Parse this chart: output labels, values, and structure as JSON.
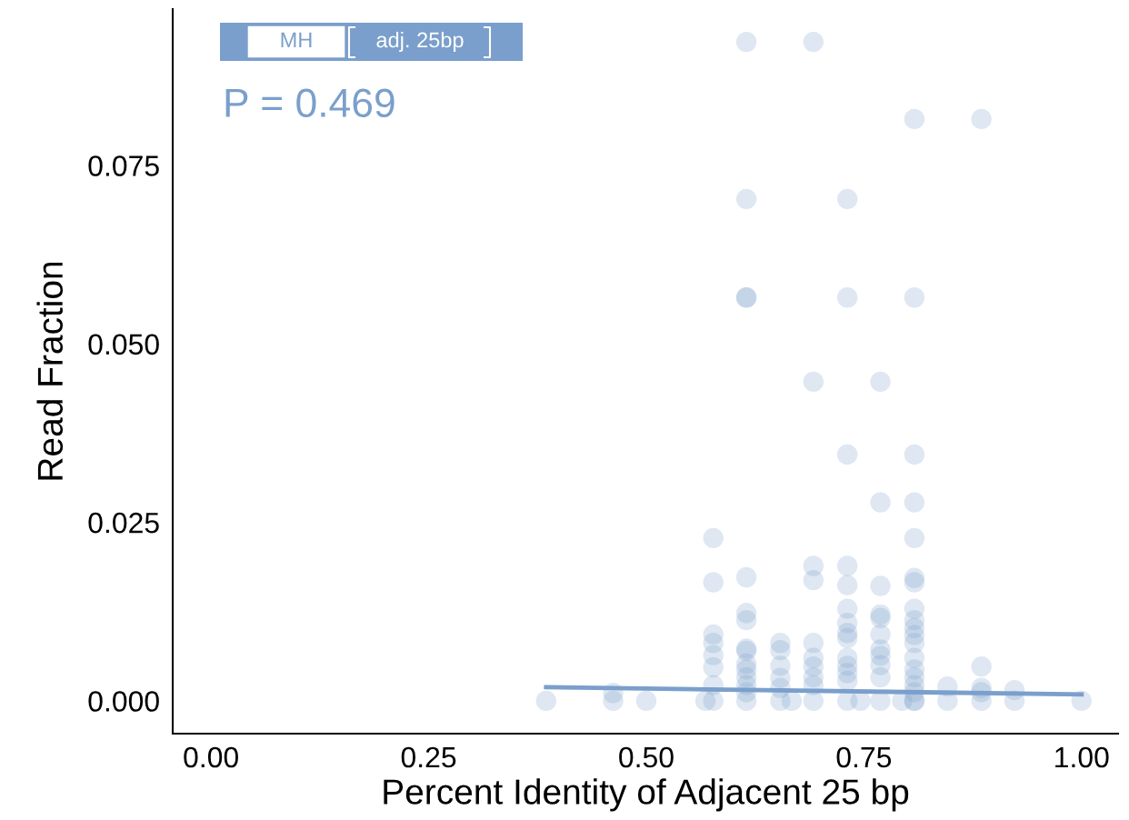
{
  "chart_data": {
    "type": "scatter",
    "xlabel": "Percent Identity of Adjacent 25 bp",
    "ylabel": "Read Fraction",
    "xlim": [
      -0.044,
      1.042
    ],
    "ylim": [
      -0.0046,
      0.0969
    ],
    "xticks": [
      {
        "value": 0,
        "label": "0.00"
      },
      {
        "value": 0.25,
        "label": "0.25"
      },
      {
        "value": 0.5,
        "label": "0.50"
      },
      {
        "value": 0.75,
        "label": "0.75"
      },
      {
        "value": 1,
        "label": "1.00"
      }
    ],
    "yticks": [
      {
        "value": 0,
        "label": "0.000"
      },
      {
        "value": 0.025,
        "label": "0.025"
      },
      {
        "value": 0.05,
        "label": "0.050"
      },
      {
        "value": 0.075,
        "label": "0.075"
      }
    ],
    "grid": false,
    "legend": false,
    "annotations": [
      "MH",
      "adj. 25bp",
      "P = 0.469"
    ],
    "series": [
      {
        "color": "#7b9fcc",
        "marker": "circle",
        "x": [
          0.385,
          0.462,
          0.462,
          0.5,
          0.568,
          0.577,
          0.577,
          0.577,
          0.577,
          0.577,
          0.577,
          0.577,
          0.577,
          0.615,
          0.615,
          0.615,
          0.615,
          0.615,
          0.615,
          0.615,
          0.615,
          0.615,
          0.615,
          0.615,
          0.615,
          0.615,
          0.615,
          0.615,
          0.654,
          0.654,
          0.654,
          0.654,
          0.654,
          0.654,
          0.667,
          0.692,
          0.692,
          0.692,
          0.692,
          0.692,
          0.692,
          0.692,
          0.692,
          0.692,
          0.692,
          0.731,
          0.731,
          0.731,
          0.731,
          0.731,
          0.731,
          0.731,
          0.731,
          0.731,
          0.731,
          0.731,
          0.731,
          0.731,
          0.731,
          0.746,
          0.769,
          0.769,
          0.769,
          0.769,
          0.769,
          0.769,
          0.769,
          0.769,
          0.769,
          0.769,
          0.769,
          0.794,
          0.808,
          0.808,
          0.808,
          0.808,
          0.808,
          0.808,
          0.808,
          0.808,
          0.808,
          0.808,
          0.808,
          0.808,
          0.808,
          0.808,
          0.808,
          0.808,
          0.808,
          0.808,
          0.808,
          0.846,
          0.846,
          0.885,
          0.885,
          0.885,
          0.885,
          0.885,
          0.923,
          0.923,
          1.0
        ],
        "values": [
          0,
          0.0011,
          0,
          0,
          0,
          0.0228,
          0.0166,
          0.0093,
          0.0081,
          0.0064,
          0.0047,
          0.0022,
          0,
          0.0923,
          0.0703,
          0.0565,
          0.0173,
          0.0123,
          0.0113,
          0.0073,
          0.007,
          0.0052,
          0.0044,
          0.0033,
          0.0022,
          0.0012,
          0,
          0.0565,
          0.0081,
          0.0071,
          0.0049,
          0.0032,
          0.0018,
          0,
          0,
          0.0923,
          0.0447,
          0.0189,
          0.0169,
          0.0081,
          0.006,
          0.0048,
          0.0033,
          0.0022,
          0,
          0.0703,
          0.0565,
          0.0345,
          0.0189,
          0.0162,
          0.0129,
          0.0109,
          0.0095,
          0.0088,
          0.006,
          0.0049,
          0.0039,
          0.0028,
          0,
          0,
          0.0447,
          0.0278,
          0.0161,
          0.0121,
          0.0116,
          0.0093,
          0.0072,
          0.0063,
          0.005,
          0.0033,
          0,
          0,
          0.0815,
          0.0565,
          0.0345,
          0.0278,
          0.0228,
          0.0172,
          0.0166,
          0.0129,
          0.0113,
          0.0102,
          0.0092,
          0.0081,
          0.006,
          0.0044,
          0.0033,
          0.0022,
          0.0012,
          0,
          0,
          0.002,
          0,
          0.0815,
          0.0048,
          0.0018,
          0.0012,
          0,
          0.0015,
          0,
          0
        ]
      },
      {
        "type": "line",
        "color": "#7b9fcc",
        "x": [
          0.385,
          1.0
        ],
        "values": [
          0.0019,
          0.0009
        ]
      }
    ]
  }
}
